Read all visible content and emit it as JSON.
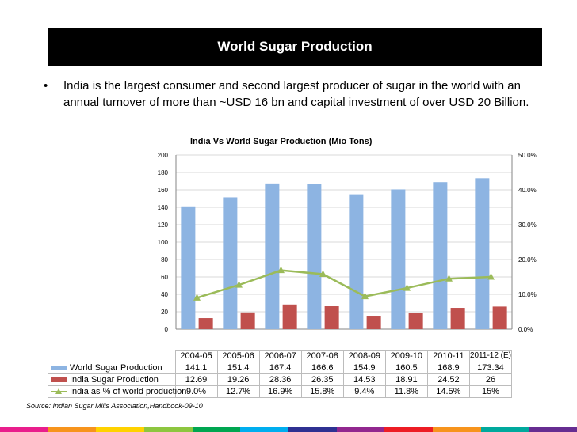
{
  "header": {
    "title": "World Sugar Production"
  },
  "bullet": {
    "text": "India is the largest consumer and second largest producer of sugar in the world with an annual turnover of more than ~USD 16 bn and capital investment of over USD 20 Billion."
  },
  "source": "Source: Indian Sugar Mills Association,Handbook-09-10",
  "chart_data": {
    "type": "bar",
    "title": "India Vs World Sugar Production  (Mio Tons)",
    "categories": [
      "2004-05",
      "2005-06",
      "2006-07",
      "2007-08",
      "2008-09",
      "2009-10",
      "2010-11",
      "2011-12 (E)"
    ],
    "series": [
      {
        "name": "World Sugar Production",
        "type": "bar",
        "axis": "left",
        "color": "#8db4e2",
        "values": [
          141.1,
          151.4,
          167.4,
          166.6,
          154.9,
          160.5,
          168.9,
          173.34
        ]
      },
      {
        "name": "India Sugar Production",
        "type": "bar",
        "axis": "left",
        "color": "#c0504d",
        "values": [
          12.69,
          19.26,
          28.36,
          26.35,
          14.53,
          18.91,
          24.52,
          26
        ]
      },
      {
        "name": "India as % of world production",
        "type": "line",
        "axis": "right",
        "color": "#9bbb59",
        "values": [
          9.0,
          12.7,
          16.9,
          15.8,
          9.4,
          11.8,
          14.5,
          15
        ]
      }
    ],
    "table_values": [
      [
        "141.1",
        "151.4",
        "167.4",
        "166.6",
        "154.9",
        "160.5",
        "168.9",
        "173.34"
      ],
      [
        "12.69",
        "19.26",
        "28.36",
        "26.35",
        "14.53",
        "18.91",
        "24.52",
        "26"
      ],
      [
        "9.0%",
        "12.7%",
        "16.9%",
        "15.8%",
        "9.4%",
        "11.8%",
        "14.5%",
        "15%"
      ]
    ],
    "y_left": {
      "ylim": [
        0,
        200
      ],
      "ticks": [
        "0",
        "20",
        "40",
        "60",
        "80",
        "100",
        "120",
        "140",
        "160",
        "180",
        "200"
      ]
    },
    "y_right": {
      "ylim": [
        0,
        50
      ],
      "ticks": [
        "0.0%",
        "10.0%",
        "20.0%",
        "30.0%",
        "40.0%",
        "50.0%"
      ]
    },
    "grid": true,
    "legend": "bottom-table"
  },
  "stripe_colors": [
    "#e91e8c",
    "#f7941d",
    "#ffd200",
    "#8dc63f",
    "#00a651",
    "#00aeef",
    "#2e3192",
    "#92278f",
    "#ed1c24",
    "#f7941d",
    "#00a99d",
    "#662d91"
  ]
}
